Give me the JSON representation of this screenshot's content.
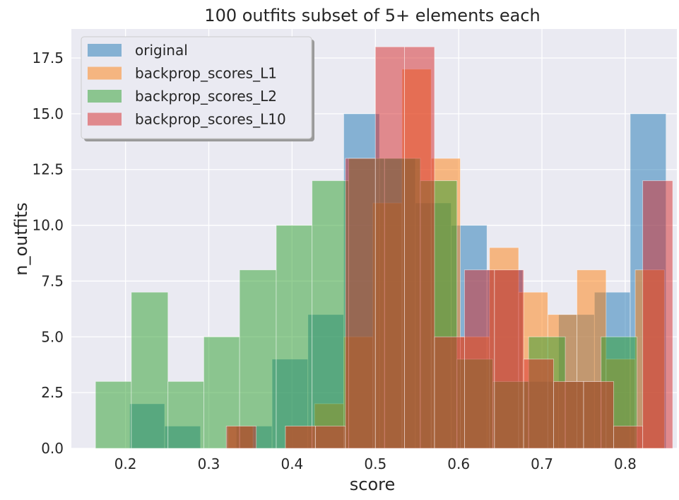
{
  "chart_data": {
    "type": "bar",
    "title": "100 outfits subset of 5+ elements each",
    "xlabel": "score",
    "ylabel": "n_outfits",
    "xlim": [
      0.135,
      0.862
    ],
    "ylim": [
      0,
      18.8
    ],
    "xticks": [
      {
        "value": 0.2,
        "label": "0.2"
      },
      {
        "value": 0.3,
        "label": "0.3"
      },
      {
        "value": 0.4,
        "label": "0.4"
      },
      {
        "value": 0.5,
        "label": "0.5"
      },
      {
        "value": 0.6,
        "label": "0.6"
      },
      {
        "value": 0.7,
        "label": "0.7"
      },
      {
        "value": 0.8,
        "label": "0.8"
      }
    ],
    "yticks": [
      {
        "value": 0.0,
        "label": "0.0"
      },
      {
        "value": 2.5,
        "label": "2.5"
      },
      {
        "value": 5.0,
        "label": "5.0"
      },
      {
        "value": 7.5,
        "label": "7.5"
      },
      {
        "value": 10.0,
        "label": "10.0"
      },
      {
        "value": 12.5,
        "label": "12.5"
      },
      {
        "value": 15.0,
        "label": "15.0"
      },
      {
        "value": 17.5,
        "label": "17.5"
      }
    ],
    "grid": true,
    "legend_position": "top-left",
    "series": [
      {
        "name": "original",
        "color": "#1f77b4",
        "bins": [
          {
            "x0": 0.205,
            "x1": 0.247,
            "y": 2
          },
          {
            "x0": 0.247,
            "x1": 0.29,
            "y": 1
          },
          {
            "x0": 0.333,
            "x1": 0.376,
            "y": 1
          },
          {
            "x0": 0.376,
            "x1": 0.419,
            "y": 4
          },
          {
            "x0": 0.419,
            "x1": 0.462,
            "y": 6
          },
          {
            "x0": 0.462,
            "x1": 0.505,
            "y": 15
          },
          {
            "x0": 0.505,
            "x1": 0.548,
            "y": 13
          },
          {
            "x0": 0.548,
            "x1": 0.591,
            "y": 11
          },
          {
            "x0": 0.591,
            "x1": 0.634,
            "y": 10
          },
          {
            "x0": 0.634,
            "x1": 0.677,
            "y": 8
          },
          {
            "x0": 0.677,
            "x1": 0.72,
            "y": 3
          },
          {
            "x0": 0.72,
            "x1": 0.763,
            "y": 6
          },
          {
            "x0": 0.763,
            "x1": 0.806,
            "y": 7
          },
          {
            "x0": 0.806,
            "x1": 0.849,
            "y": 15
          }
        ]
      },
      {
        "name": "backprop_scores_L1",
        "color": "#ff7f0e",
        "bins": [
          {
            "x0": 0.323,
            "x1": 0.353,
            "y": 1
          },
          {
            "x0": 0.392,
            "x1": 0.427,
            "y": 1
          },
          {
            "x0": 0.427,
            "x1": 0.462,
            "y": 2
          },
          {
            "x0": 0.462,
            "x1": 0.497,
            "y": 5
          },
          {
            "x0": 0.497,
            "x1": 0.532,
            "y": 11
          },
          {
            "x0": 0.532,
            "x1": 0.567,
            "y": 17
          },
          {
            "x0": 0.567,
            "x1": 0.602,
            "y": 13
          },
          {
            "x0": 0.602,
            "x1": 0.637,
            "y": 5
          },
          {
            "x0": 0.637,
            "x1": 0.672,
            "y": 9
          },
          {
            "x0": 0.672,
            "x1": 0.707,
            "y": 7
          },
          {
            "x0": 0.707,
            "x1": 0.742,
            "y": 6
          },
          {
            "x0": 0.742,
            "x1": 0.777,
            "y": 8
          },
          {
            "x0": 0.777,
            "x1": 0.812,
            "y": 4
          },
          {
            "x0": 0.812,
            "x1": 0.847,
            "y": 8
          }
        ]
      },
      {
        "name": "backprop_scores_L2",
        "color": "#2ca02c",
        "bins": [
          {
            "x0": 0.164,
            "x1": 0.207,
            "y": 3
          },
          {
            "x0": 0.207,
            "x1": 0.251,
            "y": 7
          },
          {
            "x0": 0.251,
            "x1": 0.294,
            "y": 3
          },
          {
            "x0": 0.294,
            "x1": 0.337,
            "y": 5
          },
          {
            "x0": 0.337,
            "x1": 0.381,
            "y": 8
          },
          {
            "x0": 0.381,
            "x1": 0.424,
            "y": 10
          },
          {
            "x0": 0.424,
            "x1": 0.468,
            "y": 12
          },
          {
            "x0": 0.468,
            "x1": 0.511,
            "y": 13
          },
          {
            "x0": 0.511,
            "x1": 0.554,
            "y": 13
          },
          {
            "x0": 0.554,
            "x1": 0.598,
            "y": 12
          },
          {
            "x0": 0.598,
            "x1": 0.641,
            "y": 4
          },
          {
            "x0": 0.641,
            "x1": 0.684,
            "y": 3
          },
          {
            "x0": 0.684,
            "x1": 0.728,
            "y": 5
          },
          {
            "x0": 0.728,
            "x1": 0.771,
            "y": 3
          },
          {
            "x0": 0.771,
            "x1": 0.814,
            "y": 5
          },
          {
            "x0": 0.814,
            "x1": 0.858,
            "y": 0
          }
        ]
      },
      {
        "name": "backprop_scores_L10",
        "color": "#d62728",
        "bins": [
          {
            "x0": 0.321,
            "x1": 0.357,
            "y": 1
          },
          {
            "x0": 0.392,
            "x1": 0.428,
            "y": 1
          },
          {
            "x0": 0.428,
            "x1": 0.464,
            "y": 1
          },
          {
            "x0": 0.464,
            "x1": 0.5,
            "y": 13
          },
          {
            "x0": 0.5,
            "x1": 0.535,
            "y": 18
          },
          {
            "x0": 0.535,
            "x1": 0.571,
            "y": 18
          },
          {
            "x0": 0.571,
            "x1": 0.607,
            "y": 5
          },
          {
            "x0": 0.607,
            "x1": 0.643,
            "y": 8
          },
          {
            "x0": 0.643,
            "x1": 0.678,
            "y": 8
          },
          {
            "x0": 0.678,
            "x1": 0.714,
            "y": 4
          },
          {
            "x0": 0.714,
            "x1": 0.75,
            "y": 3
          },
          {
            "x0": 0.75,
            "x1": 0.786,
            "y": 3
          },
          {
            "x0": 0.786,
            "x1": 0.821,
            "y": 1
          },
          {
            "x0": 0.821,
            "x1": 0.857,
            "y": 12
          }
        ]
      }
    ]
  }
}
